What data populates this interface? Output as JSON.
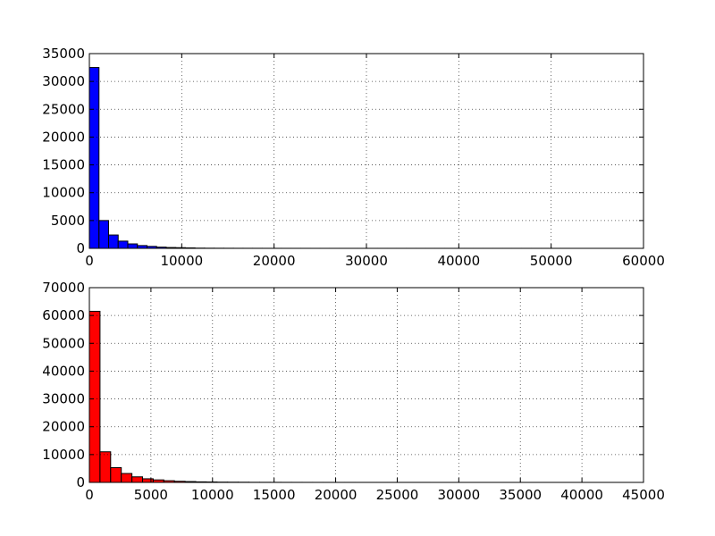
{
  "chart_data": [
    {
      "type": "bar",
      "bar_color": "#0000ff",
      "grid": true,
      "xlim": [
        0,
        60000
      ],
      "ylim": [
        0,
        35000
      ],
      "xticks": [
        0,
        10000,
        20000,
        30000,
        40000,
        50000,
        60000
      ],
      "yticks": [
        0,
        5000,
        10000,
        15000,
        20000,
        25000,
        30000,
        35000
      ],
      "xtick_labels": [
        "0",
        "10000",
        "20000",
        "30000",
        "40000",
        "50000",
        "60000"
      ],
      "ytick_labels": [
        "0",
        "5000",
        "10000",
        "15000",
        "20000",
        "25000",
        "30000",
        "35000"
      ],
      "bin_edges": [
        0,
        1040,
        2080,
        3120,
        4160,
        5200,
        6240,
        7280,
        8320,
        9360,
        10400,
        11440,
        12480,
        13520,
        14560,
        15600,
        16640,
        17680,
        18720,
        19760,
        20800,
        21840,
        22880,
        23920,
        24960,
        26000,
        27040,
        28080,
        29120,
        30160,
        31200,
        32240,
        33280,
        34320,
        35360,
        36400,
        37440,
        38480,
        39520,
        40560,
        41600,
        42640,
        43680,
        44720,
        45760,
        46800,
        47840,
        48880,
        49920,
        50960,
        52000
      ],
      "values": [
        32500,
        5000,
        2400,
        1300,
        800,
        500,
        350,
        220,
        150,
        120,
        80,
        40,
        25,
        20,
        15,
        12,
        10,
        8,
        6,
        5,
        4,
        3,
        3,
        2,
        2,
        2,
        2,
        1,
        1,
        1,
        1,
        1,
        1,
        1,
        1,
        1,
        1,
        1,
        1,
        1,
        1,
        1,
        1,
        1,
        1,
        1,
        1,
        1,
        1,
        1
      ]
    },
    {
      "type": "bar",
      "bar_color": "#ff0000",
      "grid": true,
      "xlim": [
        0,
        45000
      ],
      "ylim": [
        0,
        70000
      ],
      "xticks": [
        0,
        5000,
        10000,
        15000,
        20000,
        25000,
        30000,
        35000,
        40000,
        45000
      ],
      "yticks": [
        0,
        10000,
        20000,
        30000,
        40000,
        50000,
        60000,
        70000
      ],
      "xtick_labels": [
        "0",
        "5000",
        "10000",
        "15000",
        "20000",
        "25000",
        "30000",
        "35000",
        "40000",
        "45000"
      ],
      "ytick_labels": [
        "0",
        "10000",
        "20000",
        "30000",
        "40000",
        "50000",
        "60000",
        "70000"
      ],
      "bin_edges": [
        0,
        864,
        1728,
        2592,
        3456,
        4320,
        5184,
        6048,
        6912,
        7776,
        8640,
        9504,
        10368,
        11232,
        12096,
        12960,
        13824,
        14688,
        15552,
        16416,
        17280,
        18144,
        19008,
        19872,
        20736,
        21600,
        22464,
        23328,
        24192,
        25056,
        25920,
        26784,
        27648,
        28512,
        29376,
        30240,
        31104,
        31968,
        32832,
        33696,
        34560,
        35424,
        36288,
        37152,
        38016,
        38880,
        39744,
        40608,
        41472,
        42336,
        43200
      ],
      "values": [
        61500,
        11000,
        5300,
        3200,
        2000,
        1300,
        900,
        600,
        400,
        300,
        200,
        150,
        100,
        80,
        60,
        40,
        30,
        25,
        20,
        15,
        12,
        10,
        8,
        6,
        5,
        4,
        3,
        3,
        2,
        2,
        2,
        2,
        1,
        1,
        1,
        1,
        1,
        1,
        1,
        1,
        1,
        1,
        1,
        1,
        1,
        1,
        1,
        1,
        1,
        1
      ]
    }
  ]
}
